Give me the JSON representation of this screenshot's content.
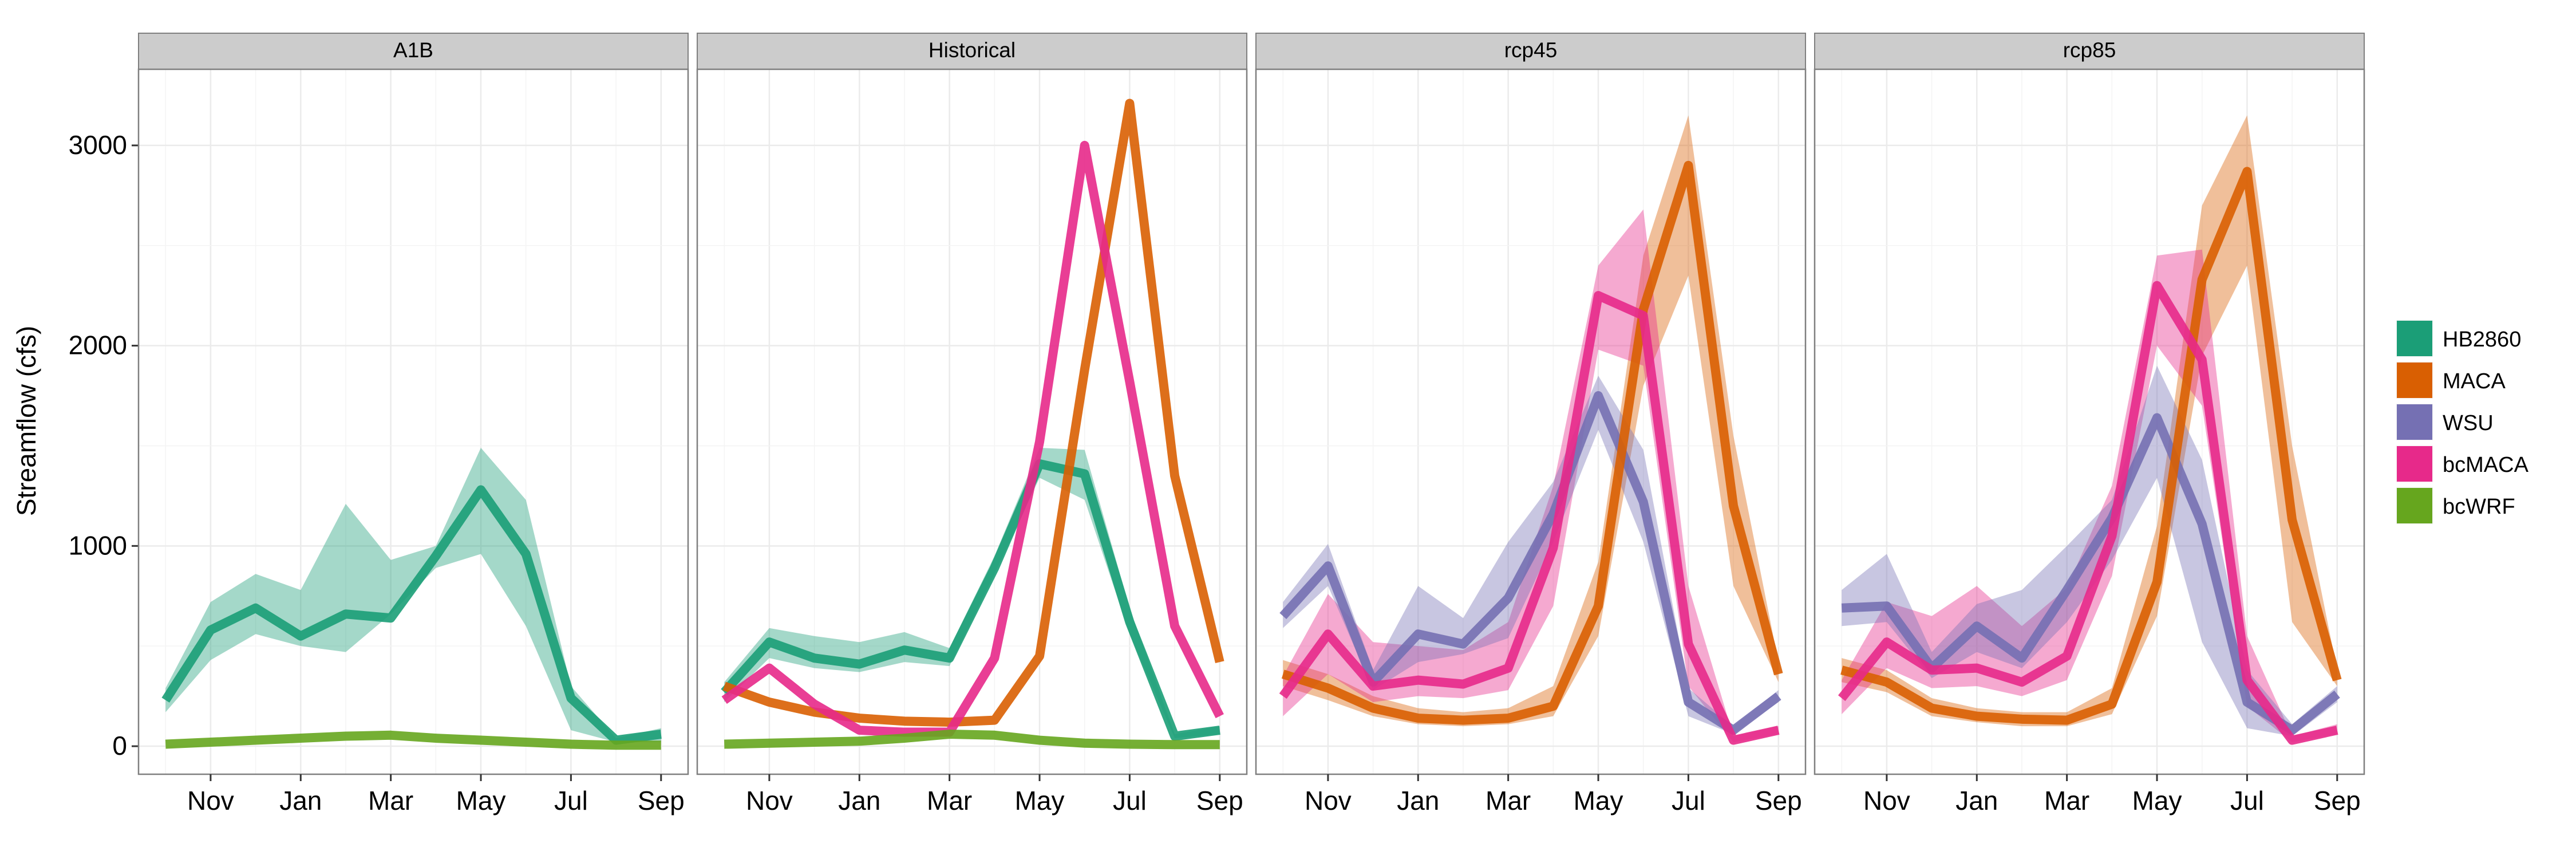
{
  "chart_data": {
    "type": "line",
    "ylabel": "Streamflow (cfs)",
    "xlabel": "",
    "ylim": [
      -140,
      3380
    ],
    "y_ticks": [
      0,
      1000,
      2000,
      3000
    ],
    "x_tick_labels": [
      "Nov",
      "Jan",
      "Mar",
      "May",
      "Jul",
      "Sep"
    ],
    "x_tick_positions": [
      2,
      4,
      6,
      8,
      10,
      12
    ],
    "xlim": [
      0.4,
      12.6
    ],
    "x_unit_note": "month index, Oct=1 ... Sep=12",
    "legend": {
      "position": "right",
      "entries": [
        "HB2860",
        "MACA",
        "WSU",
        "bcMACA",
        "bcWRF"
      ]
    },
    "colors": {
      "HB2860": "#1b9e77",
      "MACA": "#d95f02",
      "WSU": "#7570b3",
      "bcMACA": "#e7298a",
      "bcWRF": "#66a61e"
    },
    "panels": [
      {
        "title": "A1B",
        "series": [
          {
            "name": "HB2860",
            "x": [
              1,
              2,
              3,
              4,
              5,
              6,
              7,
              8,
              9,
              10,
              11,
              12
            ],
            "values": [
              230,
              580,
              690,
              550,
              660,
              640,
              950,
              1280,
              960,
              240,
              30,
              60
            ],
            "lower": [
              170,
              430,
              560,
              500,
              470,
              660,
              890,
              960,
              600,
              80,
              20,
              20
            ],
            "upper": [
              290,
              720,
              860,
              780,
              1210,
              930,
              1000,
              1490,
              1230,
              300,
              40,
              90
            ]
          },
          {
            "name": "bcWRF",
            "x": [
              1,
              2,
              3,
              4,
              5,
              6,
              7,
              8,
              9,
              10,
              11,
              12
            ],
            "values": [
              10,
              20,
              30,
              40,
              50,
              55,
              40,
              30,
              20,
              10,
              5,
              5
            ]
          }
        ]
      },
      {
        "title": "Historical",
        "series": [
          {
            "name": "HB2860",
            "x": [
              1,
              2,
              3,
              4,
              5,
              6,
              7,
              8,
              9,
              10,
              11,
              12
            ],
            "values": [
              270,
              520,
              440,
              410,
              480,
              440,
              890,
              1410,
              1360,
              620,
              50,
              80
            ],
            "lower": [
              220,
              440,
              390,
              370,
              420,
              400,
              860,
              1340,
              1230,
              560,
              40,
              60
            ],
            "upper": [
              320,
              590,
              550,
              520,
              570,
              490,
              950,
              1490,
              1480,
              690,
              60,
              100
            ]
          },
          {
            "name": "MACA",
            "x": [
              1,
              2,
              3,
              4,
              5,
              6,
              7,
              8,
              9,
              10,
              11,
              12
            ],
            "values": [
              300,
              220,
              170,
              140,
              125,
              120,
              130,
              450,
              1880,
              3210,
              1350,
              420
            ]
          },
          {
            "name": "bcMACA",
            "x": [
              1,
              2,
              3,
              4,
              5,
              6,
              7,
              8,
              9,
              10,
              11,
              12
            ],
            "values": [
              230,
              390,
              210,
              80,
              70,
              70,
              440,
              1520,
              3000,
              1820,
              600,
              150
            ]
          },
          {
            "name": "bcWRF",
            "x": [
              1,
              2,
              3,
              4,
              5,
              6,
              7,
              8,
              9,
              10,
              11,
              12
            ],
            "values": [
              10,
              15,
              20,
              25,
              40,
              60,
              55,
              30,
              15,
              10,
              8,
              8
            ]
          }
        ]
      },
      {
        "title": "rcp45",
        "series": [
          {
            "name": "WSU",
            "x": [
              1,
              2,
              3,
              4,
              5,
              6,
              7,
              8,
              9,
              10,
              11,
              12
            ],
            "values": [
              650,
              900,
              320,
              560,
              510,
              740,
              1160,
              1750,
              1220,
              220,
              80,
              250
            ],
            "lower": [
              590,
              800,
              280,
              420,
              460,
              540,
              1020,
              1580,
              1020,
              150,
              60,
              220
            ],
            "upper": [
              720,
              1010,
              380,
              800,
              640,
              1020,
              1320,
              1850,
              1480,
              290,
              100,
              280
            ]
          },
          {
            "name": "MACA",
            "x": [
              1,
              2,
              3,
              4,
              5,
              6,
              7,
              8,
              9,
              10,
              11,
              12
            ],
            "values": [
              360,
              290,
              190,
              140,
              130,
              140,
              200,
              700,
              2180,
              2900,
              1200,
              360
            ]
          },
          {
            "name": "bcMACA",
            "x": [
              1,
              2,
              3,
              4,
              5,
              6,
              7,
              8,
              9,
              10,
              11,
              12
            ],
            "values": [
              250,
              560,
              300,
              330,
              310,
              390,
              990,
              2250,
              2150,
              510,
              30,
              80
            ]
          }
        ],
        "bands": [
          {
            "name": "MACA",
            "x": [
              1,
              2,
              3,
              4,
              5,
              6,
              7,
              8,
              9,
              10,
              11,
              12
            ],
            "lower": [
              300,
              230,
              150,
              110,
              100,
              110,
              150,
              550,
              1800,
              2350,
              800,
              320
            ],
            "upper": [
              430,
              360,
              250,
              190,
              170,
              190,
              300,
              920,
              2450,
              3150,
              1550,
              420
            ]
          },
          {
            "name": "bcMACA",
            "x": [
              1,
              2,
              3,
              4,
              5,
              6,
              7,
              8,
              9,
              10,
              11,
              12
            ],
            "lower": [
              150,
              360,
              220,
              250,
              240,
              280,
              700,
              1980,
              1900,
              300,
              20,
              60
            ],
            "upper": [
              350,
              760,
              520,
              500,
              480,
              620,
              1300,
              2400,
              2680,
              800,
              50,
              100
            ]
          }
        ]
      },
      {
        "title": "rcp85",
        "series": [
          {
            "name": "WSU",
            "x": [
              1,
              2,
              3,
              4,
              5,
              6,
              7,
              8,
              9,
              10,
              11,
              12
            ],
            "values": [
              690,
              700,
              390,
              600,
              440,
              780,
              1140,
              1640,
              1110,
              220,
              80,
              260
            ],
            "lower": [
              600,
              620,
              340,
              470,
              390,
              620,
              930,
              1340,
              520,
              90,
              50,
              220
            ],
            "upper": [
              780,
              960,
              470,
              710,
              780,
              1000,
              1230,
              1900,
              1430,
              380,
              110,
              300
            ]
          },
          {
            "name": "MACA",
            "x": [
              1,
              2,
              3,
              4,
              5,
              6,
              7,
              8,
              9,
              10,
              11,
              12
            ],
            "values": [
              380,
              320,
              190,
              150,
              135,
              130,
              210,
              820,
              2330,
              2870,
              1130,
              330
            ]
          },
          {
            "name": "bcMACA",
            "x": [
              1,
              2,
              3,
              4,
              5,
              6,
              7,
              8,
              9,
              10,
              11,
              12
            ],
            "values": [
              240,
              520,
              380,
              390,
              320,
              450,
              1050,
              2300,
              1930,
              330,
              30,
              80
            ]
          }
        ],
        "bands": [
          {
            "name": "MACA",
            "x": [
              1,
              2,
              3,
              4,
              5,
              6,
              7,
              8,
              9,
              10,
              11,
              12
            ],
            "lower": [
              320,
              270,
              150,
              120,
              100,
              100,
              160,
              650,
              1950,
              2400,
              620,
              300
            ],
            "upper": [
              440,
              380,
              240,
              190,
              170,
              170,
              290,
              1100,
              2700,
              3150,
              1500,
              380
            ]
          },
          {
            "name": "bcMACA",
            "x": [
              1,
              2,
              3,
              4,
              5,
              6,
              7,
              8,
              9,
              10,
              11,
              12
            ],
            "lower": [
              160,
              390,
              290,
              300,
              250,
              330,
              850,
              2000,
              1700,
              200,
              20,
              60
            ],
            "upper": [
              330,
              720,
              650,
              800,
              600,
              790,
              1300,
              2450,
              2480,
              550,
              50,
              110
            ]
          }
        ]
      }
    ]
  }
}
